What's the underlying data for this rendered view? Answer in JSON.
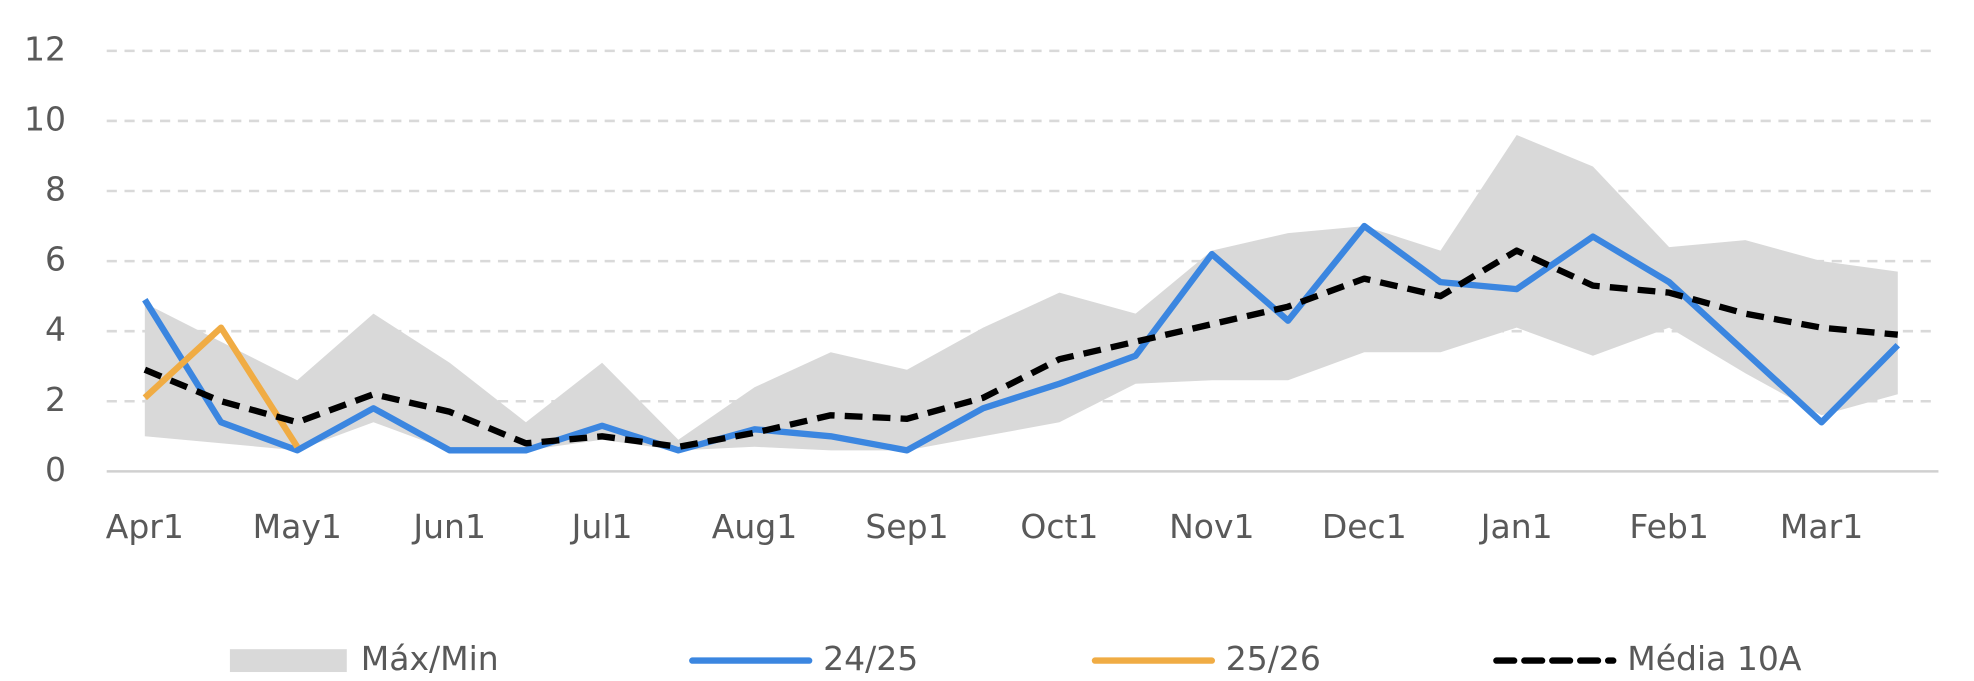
{
  "chart_data": {
    "type": "line",
    "categories": [
      "Apr1",
      null,
      "May1",
      null,
      "Jun1",
      null,
      "Jul1",
      null,
      "Aug1",
      null,
      "Sep1",
      null,
      "Oct1",
      null,
      "Nov1",
      null,
      "Dec1",
      null,
      "Jan1",
      null,
      "Feb1",
      null,
      "Mar1",
      null
    ],
    "ylim": [
      0,
      12
    ],
    "yticks": [
      0,
      2,
      4,
      6,
      8,
      10,
      12
    ],
    "grid": true,
    "legend": "bottom",
    "series": [
      {
        "name": "Máx/Min",
        "type": "band",
        "color": "#d9d9d9",
        "high": [
          4.8,
          3.7,
          2.6,
          4.5,
          3.1,
          1.4,
          3.1,
          0.9,
          2.4,
          3.4,
          2.9,
          4.1,
          5.1,
          4.5,
          6.3,
          6.8,
          7.0,
          6.3,
          9.6,
          8.7,
          6.4,
          6.6,
          6.0,
          5.7
        ],
        "low": [
          1.0,
          0.8,
          0.6,
          1.4,
          0.6,
          0.6,
          0.9,
          0.6,
          0.7,
          0.6,
          0.6,
          1.0,
          1.4,
          2.5,
          2.6,
          2.6,
          3.4,
          3.4,
          4.1,
          3.3,
          4.1,
          2.8,
          1.6,
          2.2
        ]
      },
      {
        "name": "24/25",
        "color": "#3b86e0",
        "values": [
          4.9,
          1.4,
          0.6,
          1.8,
          0.6,
          0.6,
          1.3,
          0.6,
          1.2,
          1.0,
          0.6,
          1.8,
          2.5,
          3.3,
          6.2,
          4.3,
          7.0,
          5.4,
          5.2,
          6.7,
          5.4,
          3.4,
          1.4,
          3.6
        ]
      },
      {
        "name": "25/26",
        "color": "#f0ac44",
        "values": [
          2.1,
          4.1,
          0.7,
          null,
          null,
          null,
          null,
          null,
          null,
          null,
          null,
          null,
          null,
          null,
          null,
          null,
          null,
          null,
          null,
          null,
          null,
          null,
          null,
          null
        ]
      },
      {
        "name": "Média 10A",
        "color": "#000000",
        "dashed": true,
        "values": [
          2.9,
          2.0,
          1.4,
          2.2,
          1.7,
          0.8,
          1.0,
          0.7,
          1.1,
          1.6,
          1.5,
          2.1,
          3.2,
          3.7,
          4.2,
          4.7,
          5.5,
          5.0,
          6.3,
          5.3,
          5.1,
          4.5,
          4.1,
          3.9
        ]
      }
    ]
  }
}
